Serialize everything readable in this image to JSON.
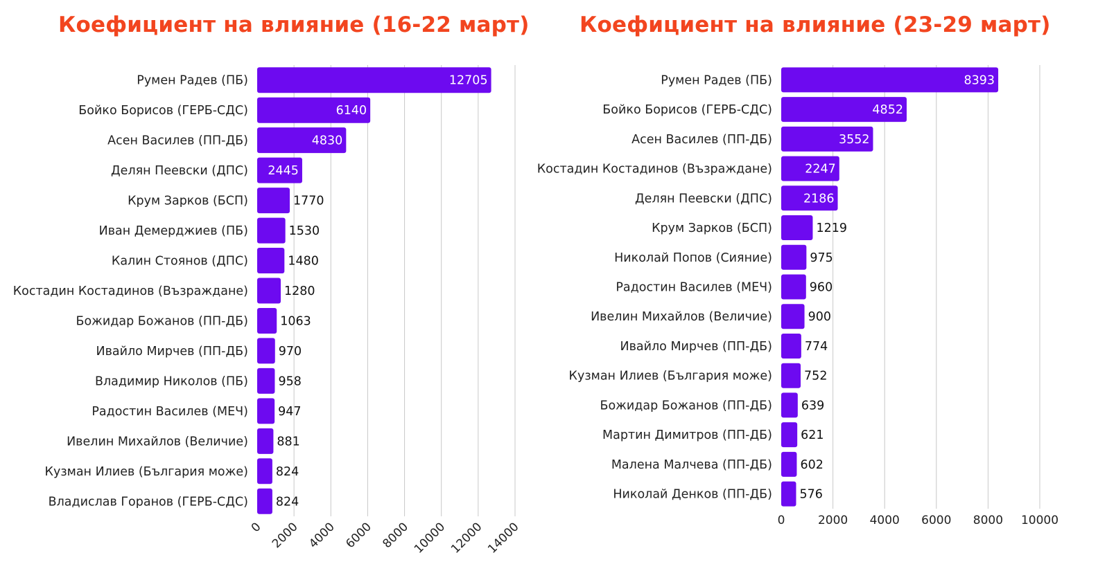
{
  "colors": {
    "bar": "#6d0af0",
    "title": "#f2451f",
    "grid": "#c8c8c8",
    "inside_text": "#ffffff",
    "outside_text": "#111111"
  },
  "chart_data": [
    {
      "type": "bar",
      "orientation": "horizontal",
      "title": "Коефициент на влияние (16-22 март)",
      "categories": [
        "Румен Радев (ПБ)",
        "Бойко Борисов (ГЕРБ-СДС)",
        "Асен Василев (ПП-ДБ)",
        "Делян Пеевски (ДПС)",
        "Крум Зарков (БСП)",
        "Иван Демерджиев (ПБ)",
        "Калин Стоянов (ДПС)",
        "Костадин Костадинов (Възраждане)",
        "Божидар Божанов (ПП-ДБ)",
        "Ивайло Мирчев (ПП-ДБ)",
        "Владимир Николов (ПБ)",
        "Радостин Василев (МЕЧ)",
        "Ивелин Михайлов (Величие)",
        "Кузман Илиев (България може)",
        "Владислав Горанов (ГЕРБ-СДС)"
      ],
      "values": [
        12705,
        6140,
        4830,
        2445,
        1770,
        1530,
        1480,
        1280,
        1063,
        970,
        958,
        947,
        881,
        824,
        824
      ],
      "xlim": [
        0,
        14000
      ],
      "xticks": [
        0,
        2000,
        4000,
        6000,
        8000,
        10000,
        12000,
        14000
      ],
      "tick_rotation": "rotated",
      "grid": true
    },
    {
      "type": "bar",
      "orientation": "horizontal",
      "title": "Коефициент на влияние (23-29 март)",
      "categories": [
        "Румен Радев (ПБ)",
        "Бойко Борисов (ГЕРБ-СДС)",
        "Асен Василев (ПП-ДБ)",
        "Костадин Костадинов (Възраждане)",
        "Делян Пеевски (ДПС)",
        "Крум Зарков (БСП)",
        "Николай Попов (Сияние)",
        "Радостин Василев (МЕЧ)",
        "Ивелин Михайлов (Величие)",
        "Ивайло Мирчев (ПП-ДБ)",
        "Кузман Илиев (България може)",
        "Божидар Божанов (ПП-ДБ)",
        "Мартин Димитров (ПП-ДБ)",
        "Малена Малчева (ПП-ДБ)",
        "Николай Денков (ПП-ДБ)"
      ],
      "values": [
        8393,
        4852,
        3552,
        2247,
        2186,
        1219,
        975,
        960,
        900,
        774,
        752,
        639,
        621,
        602,
        576
      ],
      "xlim": [
        0,
        10000
      ],
      "xticks": [
        0,
        2000,
        4000,
        6000,
        8000,
        10000
      ],
      "tick_rotation": "horizontal",
      "grid": true
    }
  ]
}
